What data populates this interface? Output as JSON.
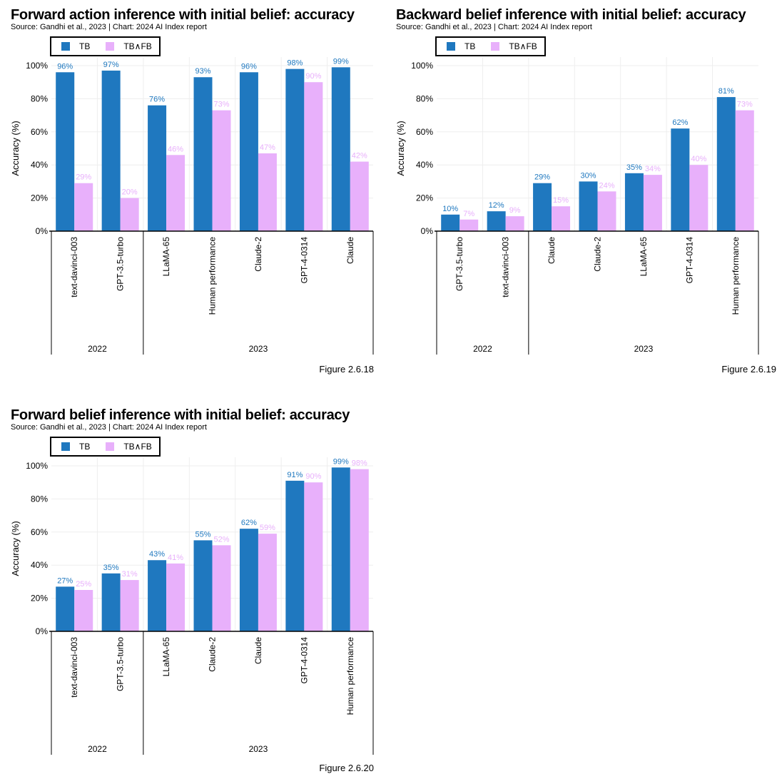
{
  "colors": {
    "tb": "#1f78bf",
    "tbfb": "#e8b0fb",
    "grid": "#eeeeee",
    "axis": "#000000"
  },
  "panels": [
    {
      "title": "Forward action inference with initial belief: accuracy",
      "source": "Source: Gandhi et al., 2023 | Chart: 2024 AI Index report",
      "figure": "Figure 2.6.18",
      "legend": {
        "tb": "TB",
        "tbfb": "TB∧FB"
      },
      "chart_data": {
        "type": "bar",
        "categories": [
          "text-davinci-003",
          "GPT-3.5-turbo",
          "LLaMA-65",
          "Human performance",
          "Claude-2",
          "GPT-4-0314",
          "Claude"
        ],
        "groups": [
          {
            "label": "2022",
            "count": 2
          },
          {
            "label": "2023",
            "count": 5
          }
        ],
        "series": [
          {
            "name": "TB",
            "values": [
              96,
              97,
              76,
              93,
              96,
              98,
              99
            ]
          },
          {
            "name": "TB∧FB",
            "values": [
              29,
              20,
              46,
              73,
              47,
              90,
              42
            ]
          }
        ],
        "value_labels": {
          "TB": [
            "96%",
            "97%",
            "76%",
            "93%",
            "96%",
            "98%",
            "99%"
          ],
          "TB∧FB": [
            "29%",
            "20%",
            "46%",
            "73%",
            "47%",
            "90%",
            "42%"
          ]
        },
        "ylabel": "Accuracy (%)",
        "yticks": [
          "0%",
          "20%",
          "40%",
          "60%",
          "80%",
          "100%"
        ],
        "ylim": [
          0,
          100
        ],
        "grid": true
      }
    },
    {
      "title": "Backward belief inference with initial belief: accuracy",
      "source": "Source: Gandhi et al., 2023 | Chart: 2024 AI Index report",
      "figure": "Figure 2.6.19",
      "legend": {
        "tb": "TB",
        "tbfb": "TB∧FB"
      },
      "chart_data": {
        "type": "bar",
        "categories": [
          "GPT-3.5-turbo",
          "text-davinci-003",
          "Claude",
          "Claude-2",
          "LLaMA-65",
          "GPT-4-0314",
          "Human performance"
        ],
        "groups": [
          {
            "label": "2022",
            "count": 2
          },
          {
            "label": "2023",
            "count": 5
          }
        ],
        "series": [
          {
            "name": "TB",
            "values": [
              10,
              12,
              29,
              30,
              35,
              62,
              81
            ]
          },
          {
            "name": "TB∧FB",
            "values": [
              7,
              9,
              15,
              24,
              34,
              40,
              73
            ]
          }
        ],
        "value_labels": {
          "TB": [
            "10%",
            "12%",
            "29%",
            "30%",
            "35%",
            "62%",
            "81%"
          ],
          "TB∧FB": [
            "7%",
            "9%",
            "15%",
            "24%",
            "34%",
            "40%",
            "73%"
          ]
        },
        "ylabel": "Accuracy (%)",
        "yticks": [
          "0%",
          "20%",
          "40%",
          "60%",
          "80%",
          "100%"
        ],
        "ylim": [
          0,
          100
        ],
        "grid": true
      }
    },
    {
      "title": "Forward belief inference with initial belief: accuracy",
      "source": "Source: Gandhi et al., 2023 | Chart: 2024 AI Index report",
      "figure": "Figure 2.6.20",
      "legend": {
        "tb": "TB",
        "tbfb": "TB∧FB"
      },
      "chart_data": {
        "type": "bar",
        "categories": [
          "text-davinci-003",
          "GPT-3.5-turbo",
          "LLaMA-65",
          "Claude-2",
          "Claude",
          "GPT-4-0314",
          "Human performance"
        ],
        "groups": [
          {
            "label": "2022",
            "count": 2
          },
          {
            "label": "2023",
            "count": 5
          }
        ],
        "series": [
          {
            "name": "TB",
            "values": [
              27,
              35,
              43,
              55,
              62,
              91,
              99
            ]
          },
          {
            "name": "TB∧FB",
            "values": [
              25,
              31,
              41,
              52,
              59,
              90,
              98
            ]
          }
        ],
        "value_labels": {
          "TB": [
            "27%",
            "35%",
            "43%",
            "55%",
            "62%",
            "91%",
            "99%"
          ],
          "TB∧FB": [
            "25%",
            "31%",
            "41%",
            "52%",
            "59%",
            "90%",
            "98%"
          ]
        },
        "ylabel": "Accuracy (%)",
        "yticks": [
          "0%",
          "20%",
          "40%",
          "60%",
          "80%",
          "100%"
        ],
        "ylim": [
          0,
          100
        ],
        "grid": true
      }
    }
  ]
}
